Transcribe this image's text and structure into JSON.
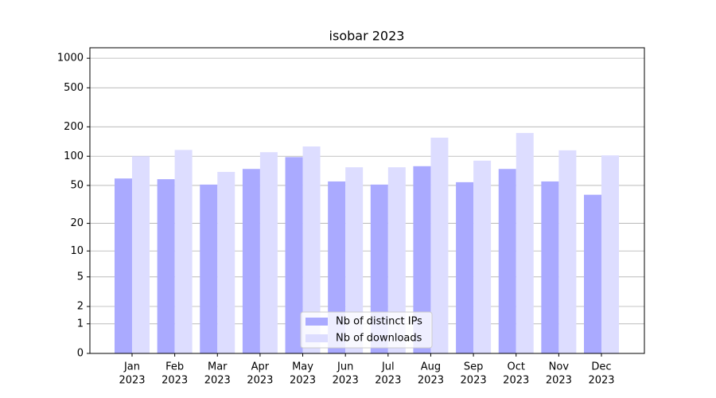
{
  "chart_data": {
    "type": "bar",
    "title": "isobar 2023",
    "scale": "log1p",
    "categories": [
      [
        "Jan",
        "2023"
      ],
      [
        "Feb",
        "2023"
      ],
      [
        "Mar",
        "2023"
      ],
      [
        "Apr",
        "2023"
      ],
      [
        "May",
        "2023"
      ],
      [
        "Jun",
        "2023"
      ],
      [
        "Jul",
        "2023"
      ],
      [
        "Aug",
        "2023"
      ],
      [
        "Sep",
        "2023"
      ],
      [
        "Oct",
        "2023"
      ],
      [
        "Nov",
        "2023"
      ],
      [
        "Dec",
        "2023"
      ]
    ],
    "series": [
      {
        "name": "Nb of distinct IPs",
        "color": "#aaaaff",
        "values": [
          59,
          58,
          51,
          74,
          98,
          55,
          51,
          79,
          54,
          74,
          55,
          40
        ]
      },
      {
        "name": "Nb of downloads",
        "color": "#ddddff",
        "values": [
          100,
          116,
          69,
          110,
          126,
          77,
          77,
          155,
          90,
          173,
          115,
          102
        ]
      }
    ],
    "ylim": [
      0,
      1278
    ],
    "yticks": [
      0,
      1,
      2,
      5,
      10,
      20,
      50,
      100,
      200,
      500,
      1000
    ],
    "grid": true,
    "legend": "lower center"
  }
}
